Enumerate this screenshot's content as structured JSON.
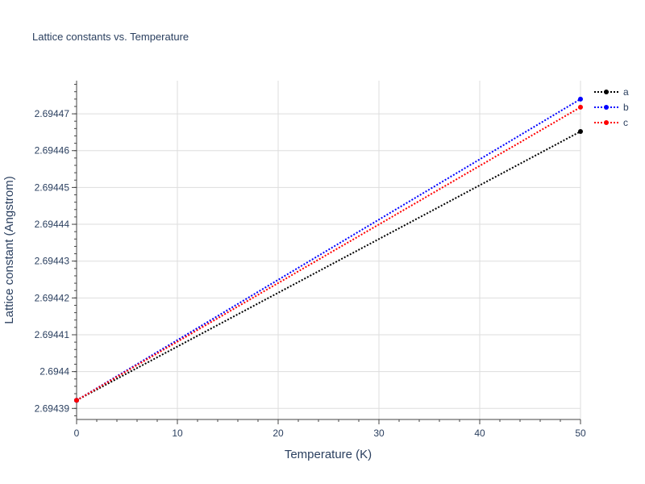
{
  "chart_data": {
    "type": "line",
    "title": "Lattice constants vs. Temperature",
    "xlabel": "Temperature (K)",
    "ylabel": "Lattice constant (Angstrom)",
    "x": [
      0,
      50
    ],
    "xlim": [
      0,
      50
    ],
    "ylim": [
      2.694387,
      2.694479
    ],
    "xticks": [
      0,
      10,
      20,
      30,
      40,
      50
    ],
    "xtick_labels": [
      "0",
      "10",
      "20",
      "30",
      "40",
      "50"
    ],
    "yticks": [
      2.69439,
      2.6944,
      2.69441,
      2.69442,
      2.69443,
      2.69444,
      2.69445,
      2.69446,
      2.69447
    ],
    "ytick_labels": [
      "2.69439",
      "2.6944",
      "2.69441",
      "2.69442",
      "2.69443",
      "2.69444",
      "2.69445",
      "2.69446",
      "2.69447"
    ],
    "grid": true,
    "legend_position": "top-right",
    "line_style": "dotted",
    "series": [
      {
        "name": "a",
        "color": "#000000",
        "y": [
          2.6943922,
          2.6944652
        ]
      },
      {
        "name": "b",
        "color": "#0000ff",
        "y": [
          2.6943922,
          2.694474
        ]
      },
      {
        "name": "c",
        "color": "#ff0000",
        "y": [
          2.6943922,
          2.6944718
        ]
      }
    ]
  }
}
